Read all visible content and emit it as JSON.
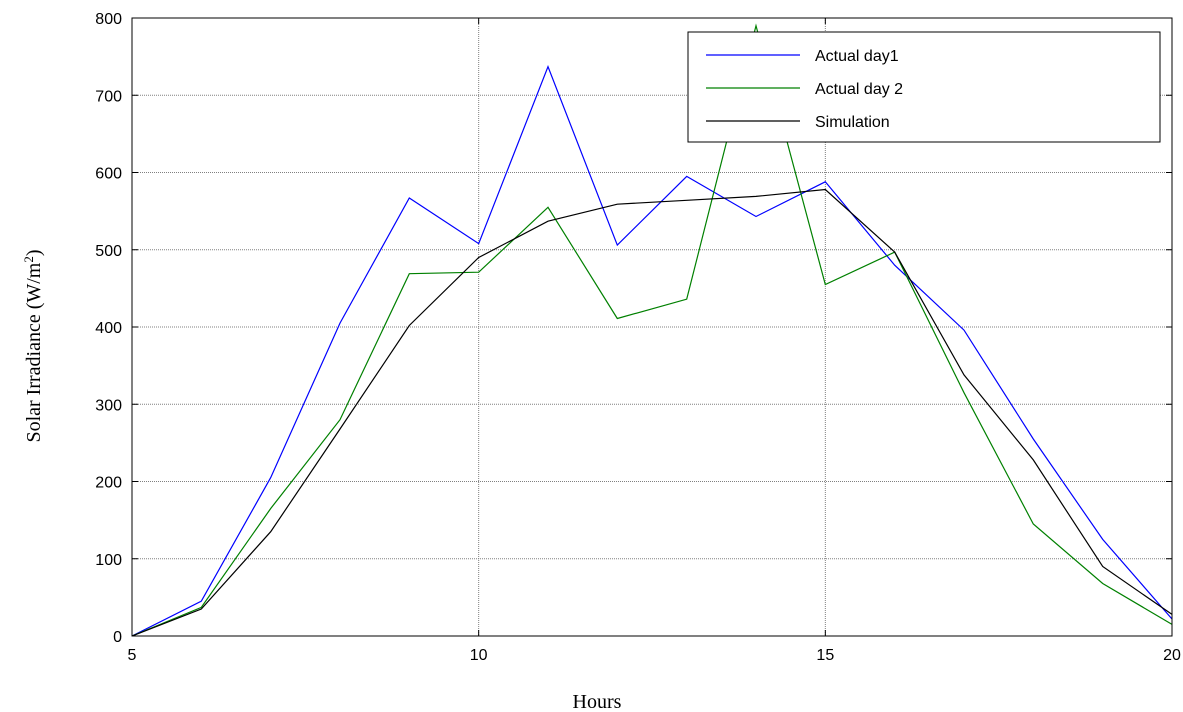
{
  "chart_data": {
    "type": "line",
    "title": "",
    "xlabel": "Hours",
    "ylabel_main": "Solar Irradiance (W/m",
    "ylabel_sup": "2",
    "ylabel_close": ")",
    "xlim": [
      5,
      20
    ],
    "ylim": [
      0,
      800
    ],
    "xticks": [
      5,
      10,
      15,
      20
    ],
    "yticks": [
      0,
      100,
      200,
      300,
      400,
      500,
      600,
      700,
      800
    ],
    "grid": true,
    "legend_position": "top-right",
    "x": [
      5,
      6,
      7,
      8,
      9,
      10,
      11,
      12,
      13,
      14,
      15,
      16,
      17,
      18,
      19,
      20
    ],
    "series": [
      {
        "name": "Actual day1",
        "color": "#0000ff",
        "values": [
          0,
          45,
          205,
          405,
          567,
          508,
          737,
          506,
          595,
          543,
          588,
          480,
          396,
          255,
          125,
          22
        ]
      },
      {
        "name": "Actual day 2",
        "color": "#008000",
        "values": [
          0,
          37,
          165,
          280,
          469,
          471,
          555,
          411,
          436,
          790,
          455,
          497,
          315,
          145,
          68,
          15
        ]
      },
      {
        "name": "Simulation",
        "color": "#000000",
        "values": [
          0,
          35,
          135,
          268,
          402,
          490,
          537,
          559,
          564,
          569,
          578,
          497,
          338,
          228,
          90,
          28
        ]
      }
    ]
  }
}
